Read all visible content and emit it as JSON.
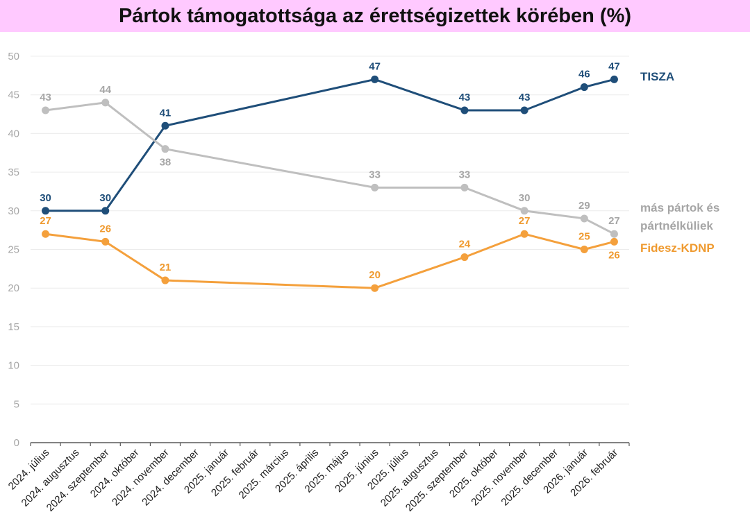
{
  "chart_data": {
    "type": "line",
    "title": "Pártok támogatottsága az érettségizettek körében (%)",
    "xlabel": "",
    "ylabel": "",
    "ylim": [
      0,
      50
    ],
    "yticks": [
      0,
      5,
      10,
      15,
      20,
      25,
      30,
      35,
      40,
      45,
      50
    ],
    "grid": true,
    "categories": [
      "2024. július",
      "2024. augusztus",
      "2024. szeptember",
      "2024. október",
      "2024. november",
      "2024. december",
      "2025. január",
      "2025. február",
      "2025. március",
      "2025. április",
      "2025. május",
      "2025. június",
      "2025. július",
      "2025. augusztus",
      "2025. szeptember",
      "2025. október",
      "2025. november",
      "2025. december",
      "2026. január",
      "2026. február"
    ],
    "series": [
      {
        "name": "TISZA",
        "color": "#1f4e79",
        "points": [
          [
            0,
            30
          ],
          [
            2,
            30
          ],
          [
            4,
            41
          ],
          [
            11,
            47
          ],
          [
            14,
            43
          ],
          [
            16,
            43
          ],
          [
            18,
            46
          ],
          [
            19,
            47
          ]
        ],
        "label_pos": "above"
      },
      {
        "name": "más pártok és pártnélküliek",
        "legend_lines": [
          "más pártok és",
          "pártnélküliek"
        ],
        "color": "#bfbfbf",
        "label_color": "#a6a6a6",
        "points": [
          [
            0,
            43
          ],
          [
            2,
            44
          ],
          [
            4,
            38
          ],
          [
            11,
            33
          ],
          [
            14,
            33
          ],
          [
            16,
            30
          ],
          [
            18,
            29
          ],
          [
            19,
            27
          ]
        ],
        "label_pos": [
          "above",
          "above",
          "below",
          "above",
          "above",
          "above",
          "above",
          "above"
        ]
      },
      {
        "name": "Fidesz-KDNP",
        "color": "#f4a03c",
        "label_color": "#ef9a2f",
        "points": [
          [
            0,
            27
          ],
          [
            2,
            26
          ],
          [
            4,
            21
          ],
          [
            11,
            20
          ],
          [
            14,
            24
          ],
          [
            16,
            27
          ],
          [
            18,
            25
          ],
          [
            19,
            26
          ]
        ],
        "label_pos": [
          "above",
          "above",
          "above",
          "above",
          "above",
          "above",
          "above",
          "below"
        ]
      }
    ],
    "legend": "right, at line ends"
  }
}
